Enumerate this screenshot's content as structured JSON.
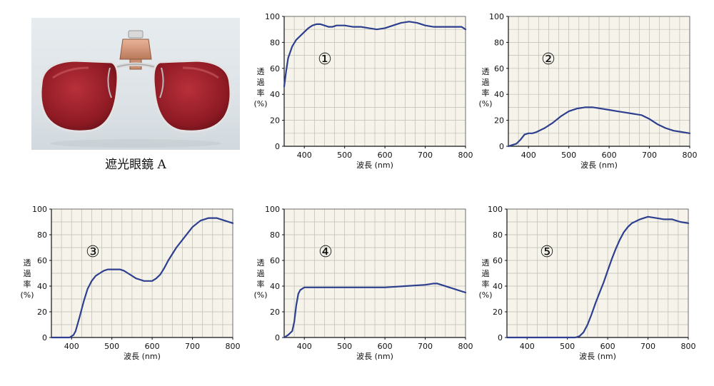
{
  "photo": {
    "caption": "遮光眼鏡 A"
  },
  "chart_data": [
    {
      "type": "line",
      "marker": "①",
      "xlabel": "波長 (nm)",
      "ylabel": [
        "透",
        "過",
        "率",
        "(%)"
      ],
      "xlim": [
        350,
        800
      ],
      "ylim": [
        0,
        100
      ],
      "xticks": [
        "400",
        "500",
        "600",
        "700",
        "800"
      ],
      "yticks": [
        "0",
        "20",
        "40",
        "60",
        "80",
        "100"
      ],
      "grid": true,
      "line_color": "#2e3f8f",
      "x": [
        350,
        355,
        360,
        370,
        380,
        390,
        400,
        410,
        420,
        430,
        440,
        450,
        460,
        470,
        480,
        490,
        500,
        520,
        540,
        560,
        580,
        600,
        610,
        620,
        640,
        660,
        680,
        700,
        720,
        740,
        760,
        780,
        790,
        800
      ],
      "y": [
        46,
        58,
        68,
        77,
        82,
        85,
        88,
        91,
        93,
        94,
        94,
        93,
        92,
        92,
        93,
        93,
        93,
        92,
        92,
        91,
        90,
        91,
        92,
        93,
        95,
        96,
        95,
        93,
        92,
        92,
        92,
        92,
        92,
        90
      ]
    },
    {
      "type": "line",
      "marker": "②",
      "xlabel": "波長 (nm)",
      "ylabel": [
        "透",
        "過",
        "率",
        "(%)"
      ],
      "xlim": [
        350,
        800
      ],
      "ylim": [
        0,
        100
      ],
      "xticks": [
        "400",
        "500",
        "600",
        "700",
        "800"
      ],
      "yticks": [
        "0",
        "20",
        "40",
        "60",
        "80",
        "100"
      ],
      "grid": true,
      "line_color": "#2e3f8f",
      "x": [
        350,
        360,
        370,
        380,
        390,
        400,
        410,
        420,
        440,
        460,
        480,
        500,
        520,
        540,
        560,
        580,
        600,
        620,
        640,
        660,
        680,
        700,
        720,
        740,
        760,
        780,
        800
      ],
      "y": [
        0,
        1,
        2,
        5,
        9,
        10,
        10,
        11,
        14,
        18,
        23,
        27,
        29,
        30,
        30,
        29,
        28,
        27,
        26,
        25,
        24,
        21,
        17,
        14,
        12,
        11,
        10
      ]
    },
    {
      "type": "line",
      "marker": "③",
      "xlabel": "波長 (nm)",
      "ylabel": [
        "透",
        "過",
        "率",
        "(%)"
      ],
      "xlim": [
        350,
        800
      ],
      "ylim": [
        0,
        100
      ],
      "xticks": [
        "400",
        "500",
        "600",
        "700",
        "800"
      ],
      "yticks": [
        "0",
        "20",
        "40",
        "60",
        "80",
        "100"
      ],
      "grid": true,
      "line_color": "#2e3f8f",
      "x": [
        350,
        380,
        395,
        405,
        410,
        420,
        430,
        440,
        450,
        460,
        470,
        480,
        490,
        500,
        510,
        520,
        530,
        540,
        550,
        560,
        570,
        580,
        590,
        600,
        610,
        620,
        630,
        640,
        660,
        680,
        700,
        720,
        740,
        760,
        780,
        800
      ],
      "y": [
        0,
        0,
        0,
        2,
        5,
        16,
        28,
        38,
        44,
        48,
        50,
        52,
        53,
        53,
        53,
        53,
        52,
        50,
        48,
        46,
        45,
        44,
        44,
        44,
        46,
        49,
        54,
        60,
        70,
        78,
        86,
        91,
        93,
        93,
        91,
        89
      ]
    },
    {
      "type": "line",
      "marker": "④",
      "xlabel": "波長 (nm)",
      "ylabel": [
        "透",
        "過",
        "率",
        "(%)"
      ],
      "xlim": [
        350,
        800
      ],
      "ylim": [
        0,
        100
      ],
      "xticks": [
        "400",
        "500",
        "600",
        "700",
        "800"
      ],
      "yticks": [
        "0",
        "20",
        "40",
        "60",
        "80",
        "100"
      ],
      "grid": true,
      "line_color": "#2e3f8f",
      "x": [
        350,
        360,
        370,
        375,
        380,
        385,
        390,
        400,
        420,
        450,
        500,
        550,
        600,
        650,
        700,
        720,
        730,
        740,
        760,
        780,
        800
      ],
      "y": [
        0,
        2,
        5,
        12,
        25,
        34,
        37,
        39,
        39,
        39,
        39,
        39,
        39,
        40,
        41,
        42,
        42,
        41,
        39,
        37,
        35
      ]
    },
    {
      "type": "line",
      "marker": "⑤",
      "xlabel": "波長 (nm)",
      "ylabel": [
        "透",
        "過",
        "率",
        "(%)"
      ],
      "xlim": [
        350,
        800
      ],
      "ylim": [
        0,
        100
      ],
      "xticks": [
        "400",
        "500",
        "600",
        "700",
        "800"
      ],
      "yticks": [
        "0",
        "20",
        "40",
        "60",
        "80",
        "100"
      ],
      "grid": true,
      "line_color": "#2e3f8f",
      "x": [
        350,
        400,
        450,
        500,
        520,
        530,
        540,
        550,
        560,
        570,
        580,
        590,
        600,
        610,
        620,
        630,
        640,
        650,
        660,
        680,
        690,
        700,
        720,
        740,
        760,
        780,
        800
      ],
      "y": [
        0,
        0,
        0,
        0,
        0,
        1,
        4,
        10,
        18,
        27,
        35,
        43,
        52,
        61,
        69,
        76,
        82,
        86,
        89,
        92,
        93,
        94,
        93,
        92,
        92,
        90,
        89
      ]
    }
  ]
}
